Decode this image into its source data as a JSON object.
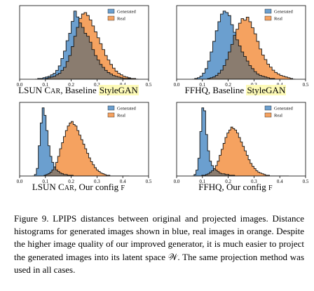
{
  "colors": {
    "generated": "#6b9fcf",
    "real": "#f5a260",
    "overlap": "#8a7c6f"
  },
  "chart_data": [
    {
      "type": "histogram",
      "caption_main": "LSUN C",
      "caption_sc": "AR",
      "caption_rest": ", Baseline ",
      "caption_hl": "StyleGAN",
      "xlim": [
        0.0,
        0.5
      ],
      "xticks": [
        "0.0",
        "0.1",
        "0.2",
        "0.3",
        "0.4",
        "0.5"
      ],
      "legend": [
        "Generated",
        "Real"
      ],
      "bin_edges_start": 0.06,
      "bin_width": 0.01,
      "series": [
        {
          "name": "Generated",
          "values": [
            0,
            1,
            1,
            2,
            3,
            4,
            6,
            8,
            12,
            18,
            28,
            38,
            52,
            62,
            78,
            92,
            84,
            76,
            70,
            62,
            58,
            50,
            40,
            32,
            26,
            20,
            16,
            12,
            9,
            7,
            5,
            4,
            3,
            2,
            1,
            1,
            1,
            0,
            0,
            0
          ]
        },
        {
          "name": "Real",
          "values": [
            0,
            0,
            0,
            0,
            1,
            2,
            3,
            4,
            6,
            8,
            12,
            16,
            24,
            32,
            44,
            58,
            70,
            82,
            88,
            90,
            86,
            80,
            72,
            64,
            56,
            48,
            40,
            32,
            26,
            20,
            15,
            11,
            8,
            6,
            4,
            3,
            2,
            1,
            1,
            0
          ]
        }
      ]
    },
    {
      "type": "histogram",
      "caption_main": "FFHQ",
      "caption_sc": "",
      "caption_rest": ", Baseline ",
      "caption_hl": "StyleGAN",
      "xlim": [
        0.0,
        0.5
      ],
      "xticks": [
        "0.0",
        "0.1",
        "0.2",
        "0.3",
        "0.4",
        "0.5"
      ],
      "legend": [
        "Generated",
        "Real"
      ],
      "bin_edges_start": 0.06,
      "bin_width": 0.01,
      "series": [
        {
          "name": "Generated",
          "values": [
            0,
            1,
            2,
            4,
            8,
            14,
            24,
            36,
            50,
            64,
            76,
            86,
            90,
            88,
            84,
            72,
            62,
            52,
            44,
            36,
            30,
            24,
            18,
            14,
            10,
            7,
            5,
            4,
            3,
            2,
            1,
            1,
            0,
            0,
            0,
            0,
            0,
            0,
            0,
            0
          ]
        },
        {
          "name": "Real",
          "values": [
            0,
            0,
            0,
            0,
            0,
            0,
            1,
            2,
            3,
            5,
            8,
            12,
            18,
            26,
            36,
            46,
            58,
            66,
            74,
            80,
            78,
            82,
            76,
            68,
            60,
            50,
            40,
            32,
            26,
            20,
            16,
            12,
            9,
            7,
            5,
            4,
            3,
            2,
            1,
            0
          ]
        }
      ]
    },
    {
      "type": "histogram",
      "caption_main": "LSUN C",
      "caption_sc": "AR",
      "caption_rest": ", Our config ",
      "caption_hl": "",
      "caption_tail": "F",
      "xlim": [
        0.0,
        0.5
      ],
      "xticks": [
        "0.0",
        "0.1",
        "0.2",
        "0.3",
        "0.4",
        "0.5"
      ],
      "legend": [
        "Generated",
        "Real"
      ],
      "bin_edges_start": 0.05,
      "bin_width": 0.0075,
      "series": [
        {
          "name": "Generated",
          "values": [
            0,
            2,
            10,
            40,
            70,
            90,
            80,
            60,
            40,
            26,
            18,
            12,
            8,
            6,
            4,
            3,
            2,
            2,
            1,
            1,
            1,
            0,
            0,
            0,
            0,
            0,
            0,
            0,
            0,
            0,
            0,
            0,
            0,
            0,
            0,
            0,
            0,
            0,
            0,
            0,
            0,
            0,
            0,
            0,
            0,
            0,
            0,
            0,
            0,
            0
          ]
        },
        {
          "name": "Real",
          "values": [
            0,
            0,
            0,
            0,
            0,
            0,
            1,
            2,
            3,
            5,
            8,
            12,
            18,
            26,
            36,
            44,
            52,
            60,
            66,
            70,
            72,
            68,
            66,
            60,
            54,
            48,
            42,
            36,
            30,
            24,
            19,
            15,
            11,
            8,
            6,
            4,
            3,
            2,
            1,
            1,
            0,
            0,
            0,
            0,
            0,
            0,
            0,
            0,
            0,
            0
          ]
        }
      ]
    },
    {
      "type": "histogram",
      "caption_main": "FFHQ",
      "caption_sc": "",
      "caption_rest": ", Our config ",
      "caption_hl": "",
      "caption_tail": "F",
      "xlim": [
        0.0,
        0.5
      ],
      "xticks": [
        "0.0",
        "0.1",
        "0.2",
        "0.3",
        "0.4",
        "0.5"
      ],
      "legend": [
        "Generated",
        "Real"
      ],
      "bin_edges_start": 0.06,
      "bin_width": 0.0075,
      "series": [
        {
          "name": "Generated",
          "values": [
            0,
            2,
            8,
            24,
            60,
            92,
            88,
            56,
            34,
            20,
            14,
            10,
            8,
            6,
            4,
            3,
            3,
            2,
            2,
            1,
            1,
            1,
            0,
            0,
            0,
            0,
            0,
            0,
            0,
            0,
            0,
            0,
            0,
            0,
            0,
            0,
            0,
            0,
            0,
            0,
            0,
            0,
            0,
            0,
            0,
            0,
            0,
            0,
            0,
            0
          ]
        },
        {
          "name": "Real",
          "values": [
            0,
            0,
            0,
            0,
            0,
            1,
            1,
            2,
            3,
            5,
            7,
            10,
            14,
            20,
            28,
            36,
            44,
            52,
            58,
            62,
            66,
            64,
            62,
            58,
            52,
            46,
            40,
            34,
            28,
            22,
            17,
            13,
            10,
            7,
            5,
            4,
            3,
            2,
            1,
            1,
            0,
            0,
            0,
            0,
            0,
            0,
            0,
            0,
            0,
            0
          ]
        }
      ]
    }
  ],
  "figure_caption": "Figure 9. LPIPS distances between original and projected images. Distance histograms for generated images shown in blue, real images in orange. Despite the higher image quality of our improved generator, it is much easier to project the generated images into its latent space 𝒲. The same projection method was used in all cases."
}
